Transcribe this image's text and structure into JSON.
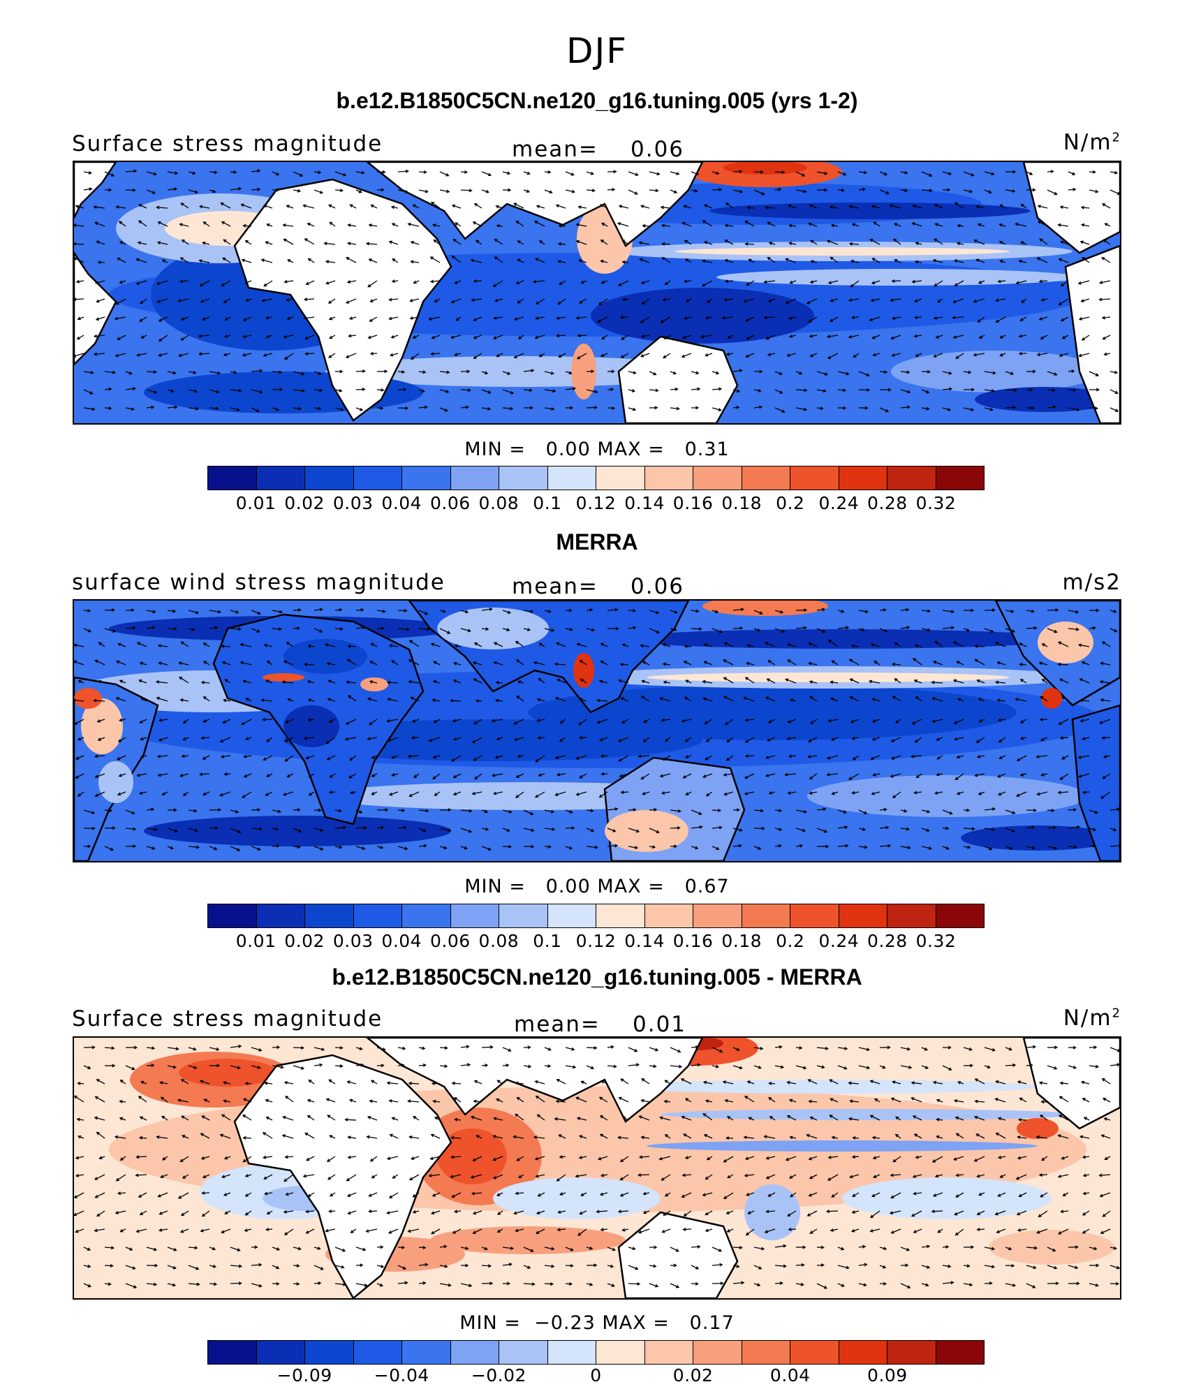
{
  "figure": {
    "season": "DJF"
  },
  "chart_data": [
    {
      "type": "heatmap",
      "title": "b.e12.B1850C5CN.ne120_g16.tuning.005 (yrs 1-2)",
      "left_title": "Surface stress magnitude",
      "mean_label": "mean=",
      "mean_value": "0.06",
      "units_base": "N/m",
      "units_sup": "2",
      "min_label": "MIN =",
      "min_value": "0.00",
      "max_label": "MAX =",
      "max_value": "0.31",
      "overlay": "vectors",
      "colorbar": {
        "tick_labels": [
          "0.01",
          "0.02",
          "0.03",
          "0.04",
          "0.06",
          "0.08",
          "0.1",
          "0.12",
          "0.14",
          "0.16",
          "0.18",
          "0.2",
          "0.24",
          "0.28",
          "0.32"
        ],
        "levels": [
          0.01,
          0.02,
          0.03,
          0.04,
          0.06,
          0.08,
          0.1,
          0.12,
          0.14,
          0.16,
          0.18,
          0.2,
          0.24,
          0.28,
          0.32
        ]
      }
    },
    {
      "type": "heatmap",
      "title": "MERRA",
      "left_title": "surface wind stress magnitude",
      "mean_label": "mean=",
      "mean_value": "0.06",
      "units_base": "m/s2",
      "units_sup": "",
      "min_label": "MIN =",
      "min_value": "0.00",
      "max_label": "MAX =",
      "max_value": "0.67",
      "overlay": "vectors",
      "colorbar": {
        "tick_labels": [
          "0.01",
          "0.02",
          "0.03",
          "0.04",
          "0.06",
          "0.08",
          "0.1",
          "0.12",
          "0.14",
          "0.16",
          "0.18",
          "0.2",
          "0.24",
          "0.28",
          "0.32"
        ],
        "levels": [
          0.01,
          0.02,
          0.03,
          0.04,
          0.06,
          0.08,
          0.1,
          0.12,
          0.14,
          0.16,
          0.18,
          0.2,
          0.24,
          0.28,
          0.32
        ]
      }
    },
    {
      "type": "heatmap",
      "title": "b.e12.B1850C5CN.ne120_g16.tuning.005 - MERRA",
      "left_title": "Surface stress magnitude",
      "mean_label": "mean=",
      "mean_value": "0.01",
      "units_base": "N/m",
      "units_sup": "2",
      "min_label": "MIN =",
      "min_value": "−0.23",
      "max_label": "MAX =",
      "max_value": "0.17",
      "overlay": "vectors",
      "colorbar": {
        "tick_labels": [
          "−0.09",
          "−0.04",
          "−0.02",
          "0",
          "0.02",
          "0.04",
          "0.09"
        ],
        "levels": [
          -0.09,
          -0.04,
          -0.02,
          0,
          0.02,
          0.04,
          0.09
        ]
      }
    }
  ],
  "colormap": [
    "#08118c",
    "#0a2fb4",
    "#0c46cf",
    "#1e5ae6",
    "#3a74ee",
    "#7ea3f4",
    "#a9c3f7",
    "#d4e4fb",
    "#fde6d4",
    "#fbc6aa",
    "#f8a07e",
    "#f47a52",
    "#ee532c",
    "#e0330f",
    "#bf2410",
    "#8b0606"
  ]
}
